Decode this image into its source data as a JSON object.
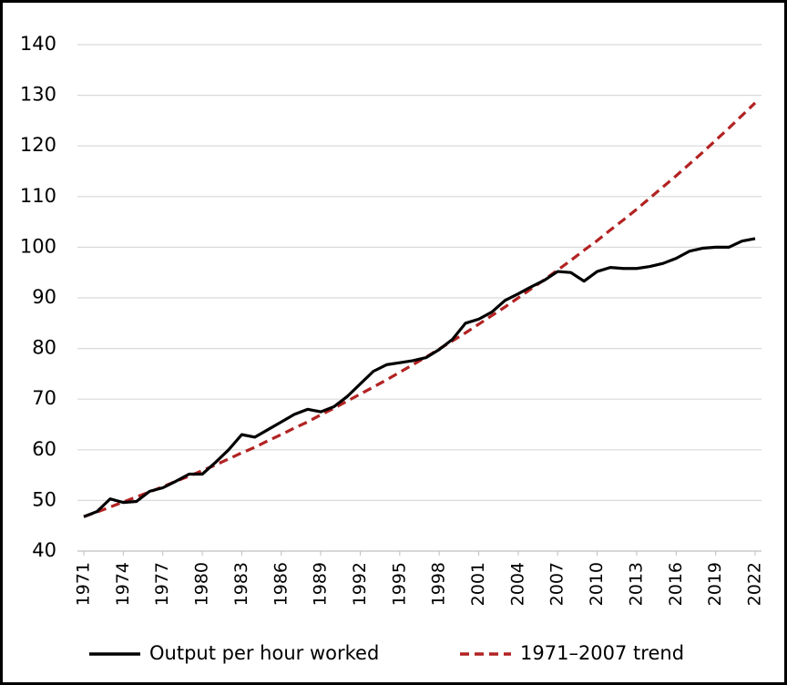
{
  "chart_data": {
    "type": "line",
    "x": [
      1971,
      1972,
      1973,
      1974,
      1975,
      1976,
      1977,
      1978,
      1979,
      1980,
      1981,
      1982,
      1983,
      1984,
      1985,
      1986,
      1987,
      1988,
      1989,
      1990,
      1991,
      1992,
      1993,
      1994,
      1995,
      1996,
      1997,
      1998,
      1999,
      2000,
      2001,
      2002,
      2003,
      2004,
      2005,
      2006,
      2007,
      2008,
      2009,
      2010,
      2011,
      2012,
      2013,
      2014,
      2015,
      2016,
      2017,
      2018,
      2019,
      2020,
      2021,
      2022
    ],
    "series": [
      {
        "name": "Output per hour worked",
        "color": "#000000",
        "dashed": false,
        "values": [
          46.8,
          47.8,
          50.3,
          49.6,
          49.8,
          51.8,
          52.5,
          53.8,
          55.2,
          55.2,
          57.5,
          60.0,
          63.0,
          62.5,
          64.0,
          65.5,
          67.0,
          68.0,
          67.5,
          68.5,
          70.5,
          73.0,
          75.5,
          76.8,
          77.2,
          77.6,
          78.2,
          79.8,
          81.8,
          85.0,
          85.8,
          87.2,
          89.5,
          90.8,
          92.2,
          93.5,
          95.2,
          95.0,
          93.3,
          95.2,
          96.0,
          95.8,
          95.8,
          96.2,
          96.8,
          97.8,
          99.2,
          99.8,
          100.0,
          100.0,
          101.2,
          101.7
        ]
      },
      {
        "name": "1971–2007 trend",
        "color": "#b22222",
        "dashed": true,
        "values": [
          46.8,
          47.7,
          48.7,
          49.7,
          50.7,
          51.7,
          52.7,
          53.8,
          54.8,
          55.9,
          57.0,
          58.2,
          59.4,
          60.5,
          61.8,
          63.0,
          64.3,
          65.5,
          66.9,
          68.2,
          69.6,
          71.0,
          72.4,
          73.8,
          75.3,
          76.8,
          78.3,
          79.9,
          81.5,
          83.1,
          84.8,
          86.5,
          88.2,
          90.0,
          91.8,
          93.6,
          95.5,
          97.4,
          99.4,
          101.3,
          103.4,
          105.4,
          107.5,
          109.7,
          111.9,
          114.1,
          116.4,
          118.7,
          121.1,
          123.5,
          126.0,
          128.5
        ]
      }
    ],
    "xlim": [
      1971,
      2022
    ],
    "xticks": [
      1971,
      1974,
      1977,
      1980,
      1983,
      1986,
      1989,
      1992,
      1995,
      1998,
      2001,
      2004,
      2007,
      2010,
      2013,
      2016,
      2019,
      2022
    ],
    "ylim": [
      40,
      140
    ],
    "yticks": [
      40,
      50,
      60,
      70,
      80,
      90,
      100,
      110,
      120,
      130,
      140
    ],
    "grid": true
  }
}
